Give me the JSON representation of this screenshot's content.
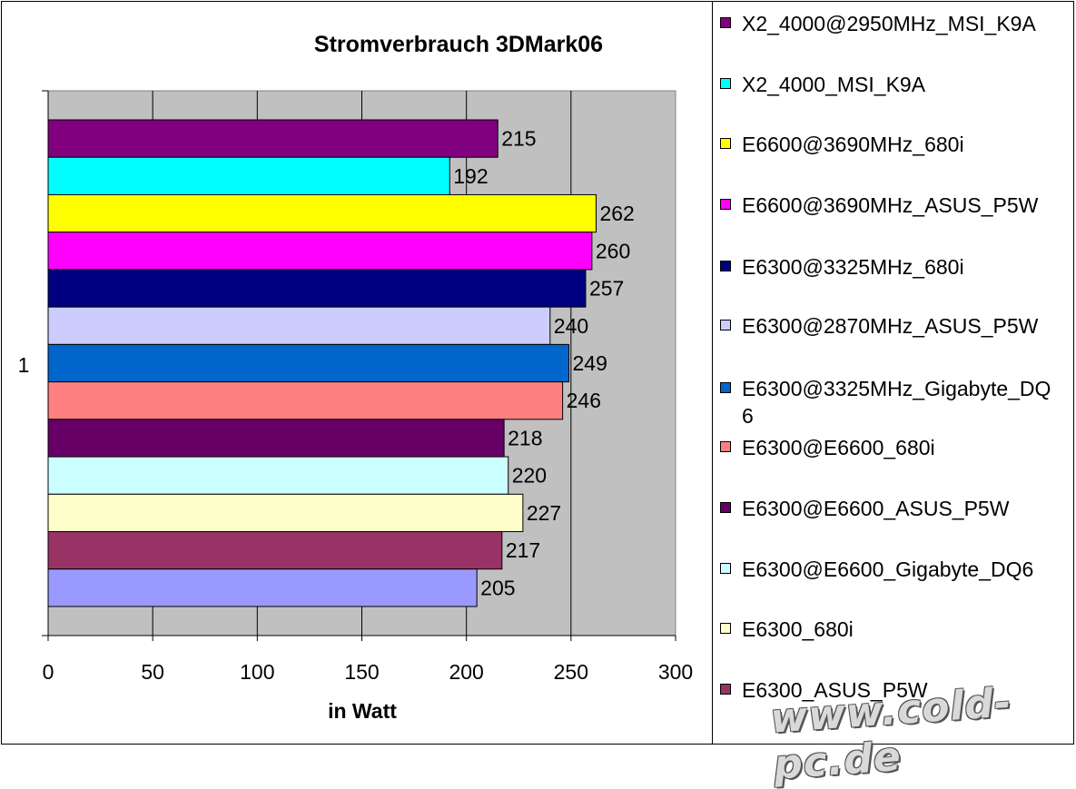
{
  "chart_data": {
    "type": "bar",
    "orientation": "horizontal",
    "title": "Stromverbrauch 3DMark06",
    "xlabel": "in Watt",
    "ylabel": "",
    "category_label": "1",
    "xlim": [
      0,
      300
    ],
    "x_ticks": [
      "0",
      "50",
      "100",
      "150",
      "200",
      "250",
      "300"
    ],
    "grid": true,
    "legend_position": "right",
    "plot_background": "#c0c0c0",
    "series": [
      {
        "name": "X2_4000@2950MHz_MSI_K9A",
        "value": 215,
        "color": "#800080"
      },
      {
        "name": "X2_4000_MSI_K9A",
        "value": 192,
        "color": "#00ffff"
      },
      {
        "name": "E6600@3690MHz_680i",
        "value": 262,
        "color": "#ffff00"
      },
      {
        "name": "E6600@3690MHz_ASUS_P5W",
        "value": 260,
        "color": "#ff00ff"
      },
      {
        "name": "E6300@3325MHz_680i",
        "value": 257,
        "color": "#000080"
      },
      {
        "name": "E6300@2870MHz_ASUS_P5W",
        "value": 240,
        "color": "#ccccff"
      },
      {
        "name": "E6300@3325MHz_Gigabyte_DQ6",
        "value": 249,
        "color": "#0066cc"
      },
      {
        "name": "E6300@E6600_680i",
        "value": 246,
        "color": "#ff8080"
      },
      {
        "name": "E6300@E6600_ASUS_P5W",
        "value": 218,
        "color": "#660066"
      },
      {
        "name": "E6300@E6600_Gigabyte_DQ6",
        "value": 220,
        "color": "#ccffff"
      },
      {
        "name": "E6300_680i",
        "value": 227,
        "color": "#ffffcc"
      },
      {
        "name": "E6300_ASUS_P5W",
        "value": 217,
        "color": "#993366"
      },
      {
        "name": "",
        "value": 205,
        "color": "#9999ff"
      }
    ]
  },
  "watermark": "www.cold-pc.de"
}
